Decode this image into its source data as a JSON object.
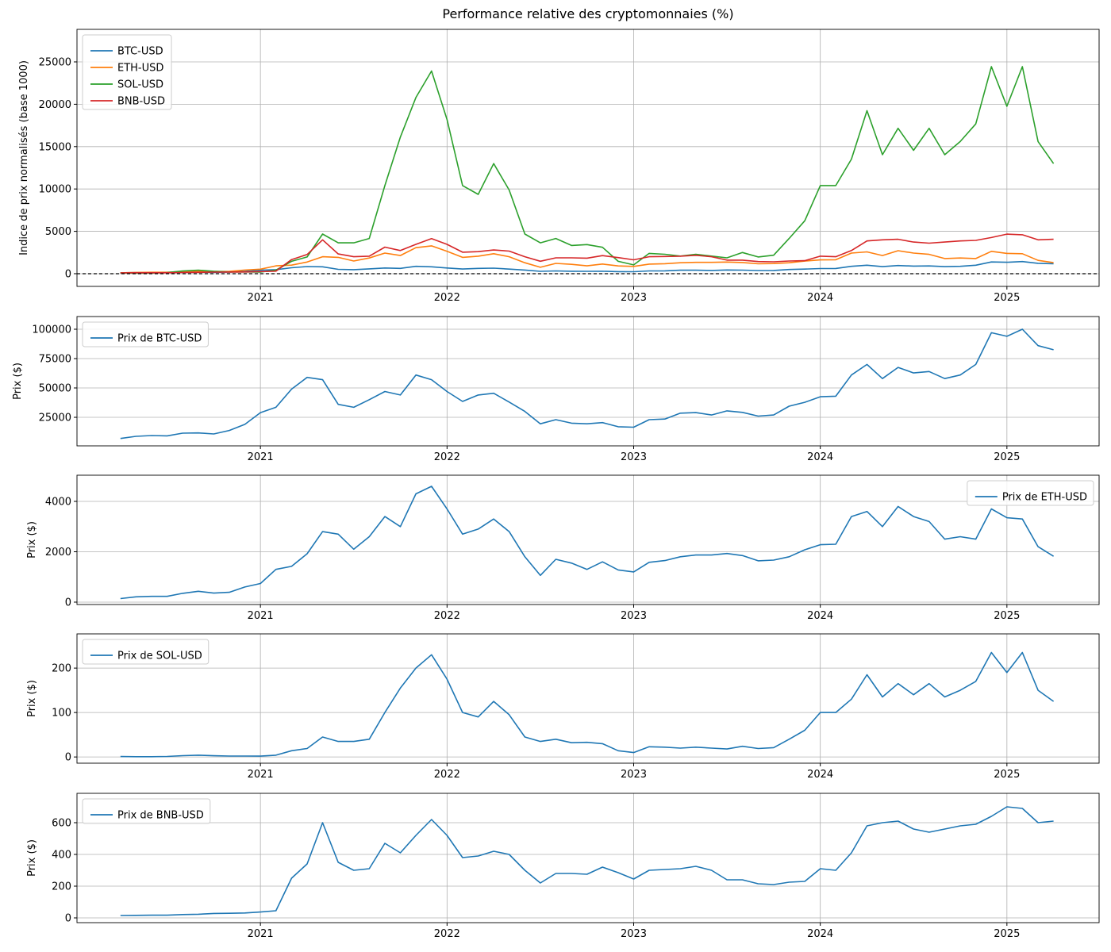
{
  "chart_data": [
    {
      "type": "line",
      "title": "Performance relative des cryptomonnaies (%)",
      "ylabel": "Indice de prix normalisés (base 1000)",
      "legend": "upper left",
      "grid": true,
      "hline": 0,
      "xlim": [
        2020.017,
        2025.494
      ],
      "xticks": [
        2021,
        2022,
        2023,
        2024,
        2025
      ],
      "ylim": [
        -1500,
        28840
      ],
      "yticks": [
        0,
        5000,
        10000,
        15000,
        20000,
        25000
      ],
      "x": [
        2020.25,
        2020.333,
        2020.417,
        2020.5,
        2020.583,
        2020.667,
        2020.75,
        2020.833,
        2020.917,
        2021,
        2021.083,
        2021.167,
        2021.25,
        2021.333,
        2021.417,
        2021.5,
        2021.583,
        2021.667,
        2021.75,
        2021.833,
        2021.917,
        2022,
        2022.083,
        2022.167,
        2022.25,
        2022.333,
        2022.417,
        2022.5,
        2022.583,
        2022.667,
        2022.75,
        2022.833,
        2022.917,
        2023,
        2023.083,
        2023.167,
        2023.25,
        2023.333,
        2023.417,
        2023.5,
        2023.583,
        2023.667,
        2023.75,
        2023.833,
        2023.917,
        2024,
        2024.083,
        2024.167,
        2024.25,
        2024.333,
        2024.417,
        2024.5,
        2024.583,
        2024.667,
        2024.75,
        2024.833,
        2024.917,
        2025,
        2025.083,
        2025.167,
        2025.25
      ],
      "series": [
        {
          "name": "BTC-USD",
          "color": "#1f77b4",
          "values": [
            100,
            126,
            136,
            131,
            164,
            167,
            154,
            197,
            271,
            414,
            479,
            700,
            843,
            814,
            514,
            479,
            571,
            671,
            629,
            871,
            814,
            671,
            550,
            629,
            650,
            543,
            429,
            279,
            329,
            286,
            279,
            293,
            243,
            237,
            329,
            336,
            407,
            414,
            386,
            436,
            417,
            371,
            386,
            493,
            540,
            607,
            614,
            871,
            1000,
            829,
            964,
            897,
            914,
            829,
            871,
            1000,
            1386,
            1343,
            1429,
            1229,
            1179
          ]
        },
        {
          "name": "ETH-USD",
          "color": "#ff7f0e",
          "values": [
            100,
            150,
            164,
            164,
            250,
            307,
            257,
            279,
            429,
            529,
            929,
            1014,
            1371,
            2000,
            1929,
            1500,
            1857,
            2429,
            2143,
            3071,
            3286,
            2643,
            1929,
            2071,
            2357,
            2000,
            1286,
            757,
            1214,
            1107,
            929,
            1143,
            914,
            857,
            1129,
            1179,
            1286,
            1336,
            1336,
            1379,
            1321,
            1171,
            1193,
            1286,
            1486,
            1629,
            1643,
            2429,
            2571,
            2143,
            2714,
            2429,
            2286,
            1786,
            1857,
            1786,
            2643,
            2393,
            2357,
            1571,
            1300
          ]
        },
        {
          "name": "SOL-USD",
          "color": "#2ca02c",
          "values": [
            100,
            62,
            73,
            125,
            312,
            416,
            291,
            208,
            208,
            187,
            416,
            1456,
            1976,
            4680,
            3640,
            3640,
            4160,
            10400,
            16120,
            20800,
            23920,
            18200,
            10400,
            9360,
            13000,
            9880,
            4680,
            3640,
            4160,
            3328,
            3432,
            3120,
            1456,
            1040,
            2392,
            2288,
            2080,
            2288,
            2080,
            1872,
            2496,
            1976,
            2184,
            4160,
            6240,
            10400,
            10400,
            13520,
            19240,
            14040,
            17160,
            14560,
            17160,
            14040,
            15600,
            17680,
            24440,
            19760,
            24440,
            15600,
            13000
          ]
        },
        {
          "name": "BNB-USD",
          "color": "#d62728",
          "values": [
            100,
            107,
            113,
            113,
            140,
            153,
            187,
            193,
            207,
            247,
            300,
            1667,
            2267,
            4000,
            2333,
            2000,
            2067,
            3133,
            2733,
            3467,
            4133,
            3467,
            2533,
            2600,
            2800,
            2667,
            2000,
            1467,
            1867,
            1867,
            1833,
            2133,
            1900,
            1633,
            2000,
            2033,
            2067,
            2167,
            2000,
            1600,
            1600,
            1433,
            1400,
            1500,
            1533,
            2067,
            2000,
            2733,
            3867,
            4000,
            4067,
            3733,
            3600,
            3733,
            3867,
            3933,
            4267,
            4667,
            4600,
            4000,
            4067
          ]
        }
      ]
    },
    {
      "type": "line",
      "ylabel": "Prix ($)",
      "legend": "upper left",
      "grid": true,
      "xlim": [
        2020.017,
        2025.494
      ],
      "xticks": [
        2021,
        2022,
        2023,
        2024,
        2025
      ],
      "ylim": [
        700,
        110800
      ],
      "yticks": [
        25000,
        50000,
        75000,
        100000
      ],
      "x": [
        2020.25,
        2020.333,
        2020.417,
        2020.5,
        2020.583,
        2020.667,
        2020.75,
        2020.833,
        2020.917,
        2021,
        2021.083,
        2021.167,
        2021.25,
        2021.333,
        2021.417,
        2021.5,
        2021.583,
        2021.667,
        2021.75,
        2021.833,
        2021.917,
        2022,
        2022.083,
        2022.167,
        2022.25,
        2022.333,
        2022.417,
        2022.5,
        2022.583,
        2022.667,
        2022.75,
        2022.833,
        2022.917,
        2023,
        2023.083,
        2023.167,
        2023.25,
        2023.333,
        2023.417,
        2023.5,
        2023.583,
        2023.667,
        2023.75,
        2023.833,
        2023.917,
        2024,
        2024.083,
        2024.167,
        2024.25,
        2024.333,
        2024.417,
        2024.5,
        2024.583,
        2024.667,
        2024.75,
        2024.833,
        2024.917,
        2025,
        2025.083,
        2025.167,
        2025.25
      ],
      "series": [
        {
          "name": "Prix de BTC-USD",
          "color": "#1f77b4",
          "values": [
            7000,
            8800,
            9500,
            9200,
            11500,
            11700,
            10800,
            13800,
            19000,
            29000,
            33500,
            49000,
            59000,
            57000,
            36000,
            33500,
            40000,
            47000,
            44000,
            61000,
            57000,
            47000,
            38500,
            44000,
            45500,
            38000,
            30000,
            19500,
            23000,
            20000,
            19500,
            20500,
            17000,
            16600,
            23000,
            23500,
            28500,
            29000,
            27000,
            30500,
            29200,
            26000,
            27000,
            34500,
            37800,
            42500,
            43000,
            61000,
            70000,
            58000,
            67500,
            62800,
            64000,
            58000,
            61000,
            70000,
            97000,
            94000,
            100000,
            86000,
            82500
          ]
        }
      ]
    },
    {
      "type": "line",
      "ylabel": "Prix ($)",
      "legend": "upper right",
      "grid": true,
      "xlim": [
        2020.017,
        2025.494
      ],
      "xticks": [
        2021,
        2022,
        2023,
        2024,
        2025
      ],
      "ylim": [
        -95,
        5040
      ],
      "yticks": [
        0,
        2000,
        4000
      ],
      "x": [
        2020.25,
        2020.333,
        2020.417,
        2020.5,
        2020.583,
        2020.667,
        2020.75,
        2020.833,
        2020.917,
        2021,
        2021.083,
        2021.167,
        2021.25,
        2021.333,
        2021.417,
        2021.5,
        2021.583,
        2021.667,
        2021.75,
        2021.833,
        2021.917,
        2022,
        2022.083,
        2022.167,
        2022.25,
        2022.333,
        2022.417,
        2022.5,
        2022.583,
        2022.667,
        2022.75,
        2022.833,
        2022.917,
        2023,
        2023.083,
        2023.167,
        2023.25,
        2023.333,
        2023.417,
        2023.5,
        2023.583,
        2023.667,
        2023.75,
        2023.833,
        2023.917,
        2024,
        2024.083,
        2024.167,
        2024.25,
        2024.333,
        2024.417,
        2024.5,
        2024.583,
        2024.667,
        2024.75,
        2024.833,
        2024.917,
        2025,
        2025.083,
        2025.167,
        2025.25
      ],
      "series": [
        {
          "name": "Prix de ETH-USD",
          "color": "#1f77b4",
          "values": [
            140,
            210,
            230,
            230,
            350,
            430,
            360,
            390,
            600,
            740,
            1300,
            1420,
            1920,
            2800,
            2700,
            2100,
            2600,
            3400,
            3000,
            4300,
            4600,
            3700,
            2700,
            2900,
            3300,
            2800,
            1800,
            1060,
            1700,
            1550,
            1300,
            1600,
            1280,
            1200,
            1580,
            1650,
            1800,
            1870,
            1870,
            1930,
            1850,
            1640,
            1670,
            1800,
            2080,
            2280,
            2300,
            3400,
            3600,
            3000,
            3800,
            3400,
            3200,
            2500,
            2600,
            2500,
            3700,
            3350,
            3300,
            2200,
            1820
          ]
        }
      ]
    },
    {
      "type": "line",
      "ylabel": "Prix ($)",
      "legend": "upper left",
      "grid": true,
      "xlim": [
        2020.017,
        2025.494
      ],
      "xticks": [
        2021,
        2022,
        2023,
        2024,
        2025
      ],
      "ylim": [
        -14,
        277
      ],
      "yticks": [
        0,
        100,
        200
      ],
      "x": [
        2020.25,
        2020.333,
        2020.417,
        2020.5,
        2020.583,
        2020.667,
        2020.75,
        2020.833,
        2020.917,
        2021,
        2021.083,
        2021.167,
        2021.25,
        2021.333,
        2021.417,
        2021.5,
        2021.583,
        2021.667,
        2021.75,
        2021.833,
        2021.917,
        2022,
        2022.083,
        2022.167,
        2022.25,
        2022.333,
        2022.417,
        2022.5,
        2022.583,
        2022.667,
        2022.75,
        2022.833,
        2022.917,
        2023,
        2023.083,
        2023.167,
        2023.25,
        2023.333,
        2023.417,
        2023.5,
        2023.583,
        2023.667,
        2023.75,
        2023.833,
        2023.917,
        2024,
        2024.083,
        2024.167,
        2024.25,
        2024.333,
        2024.417,
        2024.5,
        2024.583,
        2024.667,
        2024.75,
        2024.833,
        2024.917,
        2025,
        2025.083,
        2025.167,
        2025.25
      ],
      "series": [
        {
          "name": "Prix de SOL-USD",
          "color": "#1f77b4",
          "values": [
            0.96,
            0.6,
            0.7,
            1.2,
            3,
            4,
            2.8,
            2,
            2,
            1.8,
            4,
            14,
            19,
            45,
            35,
            35,
            40,
            100,
            155,
            200,
            230,
            175,
            100,
            90,
            125,
            95,
            45,
            35,
            40,
            32,
            33,
            30,
            14,
            10,
            23,
            22,
            20,
            22,
            20,
            18,
            24,
            19,
            21,
            40,
            60,
            100,
            100,
            130,
            185,
            135,
            165,
            140,
            165,
            135,
            150,
            170,
            235,
            190,
            235,
            150,
            125
          ]
        }
      ]
    },
    {
      "type": "line",
      "ylabel": "Prix ($)",
      "legend": "upper left",
      "grid": true,
      "xlim": [
        2020.017,
        2025.494
      ],
      "xticks": [
        2021,
        2022,
        2023,
        2024,
        2025
      ],
      "ylim": [
        -30,
        785
      ],
      "yticks": [
        0,
        200,
        400,
        600
      ],
      "x": [
        2020.25,
        2020.333,
        2020.417,
        2020.5,
        2020.583,
        2020.667,
        2020.75,
        2020.833,
        2020.917,
        2021,
        2021.083,
        2021.167,
        2021.25,
        2021.333,
        2021.417,
        2021.5,
        2021.583,
        2021.667,
        2021.75,
        2021.833,
        2021.917,
        2022,
        2022.083,
        2022.167,
        2022.25,
        2022.333,
        2022.417,
        2022.5,
        2022.583,
        2022.667,
        2022.75,
        2022.833,
        2022.917,
        2023,
        2023.083,
        2023.167,
        2023.25,
        2023.333,
        2023.417,
        2023.5,
        2023.583,
        2023.667,
        2023.75,
        2023.833,
        2023.917,
        2024,
        2024.083,
        2024.167,
        2024.25,
        2024.333,
        2024.417,
        2024.5,
        2024.583,
        2024.667,
        2024.75,
        2024.833,
        2024.917,
        2025,
        2025.083,
        2025.167,
        2025.25
      ],
      "series": [
        {
          "name": "Prix de BNB-USD",
          "color": "#1f77b4",
          "values": [
            15,
            16,
            17,
            17,
            21,
            23,
            28,
            29,
            31,
            37,
            45,
            250,
            340,
            600,
            350,
            300,
            310,
            470,
            410,
            520,
            620,
            520,
            380,
            390,
            420,
            400,
            300,
            220,
            280,
            280,
            275,
            320,
            285,
            245,
            300,
            305,
            310,
            325,
            300,
            240,
            240,
            215,
            210,
            225,
            230,
            310,
            300,
            410,
            580,
            600,
            610,
            560,
            540,
            560,
            580,
            590,
            640,
            700,
            690,
            600,
            610
          ]
        }
      ]
    }
  ]
}
